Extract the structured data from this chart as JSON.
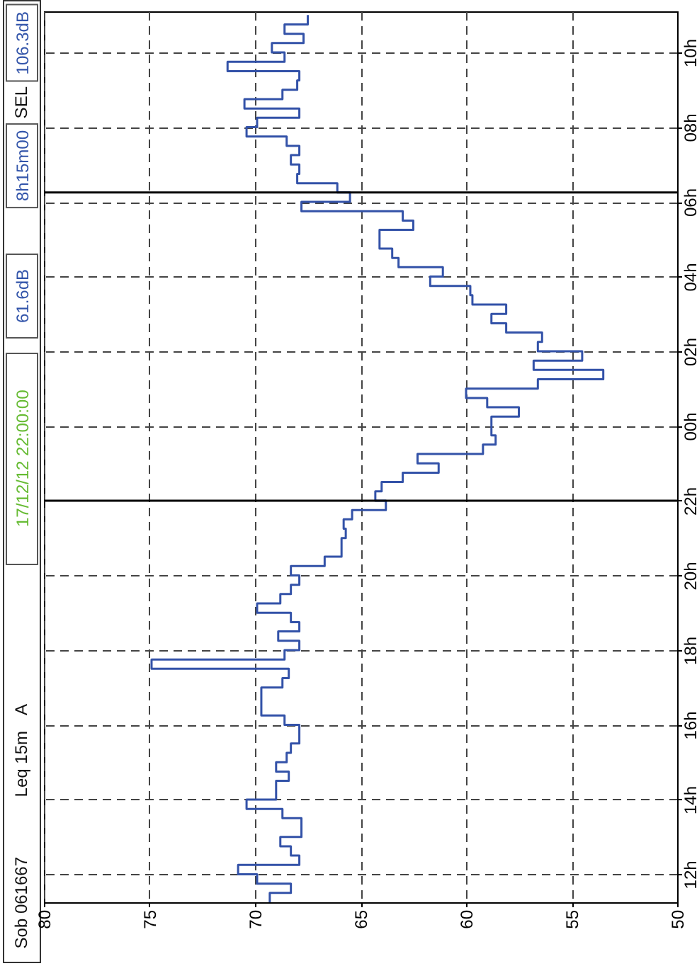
{
  "chart_data": {
    "type": "step",
    "orientation": "horizontal",
    "annotations": [
      "Sob 061667",
      "Leq 15m",
      "A",
      "17/12/12 22:00:00",
      "61.6dB",
      "8h15m00",
      "SEL",
      "106.3dB"
    ],
    "x": [
      "--12-17T11:15",
      "--12-17T11:30",
      "--12-17T11:45",
      "--12-17T12:00",
      "--12-17T12:15",
      "--12-17T12:30",
      "--12-17T12:45",
      "--12-17T13:00",
      "--12-17T13:15",
      "--12-17T13:30",
      "--12-17T13:45",
      "--12-17T14:00",
      "--12-17T14:15",
      "--12-17T14:30",
      "--12-17T14:45",
      "--12-17T15:00",
      "--12-17T15:15",
      "--12-17T15:30",
      "--12-17T15:45",
      "--12-17T16:00",
      "--12-17T16:15",
      "--12-17T16:30",
      "--12-17T16:45",
      "--12-17T17:00",
      "--12-17T17:15",
      "--12-17T17:30",
      "--12-17T17:45",
      "--12-17T18:00",
      "--12-17T18:15",
      "--12-17T18:30",
      "--12-17T18:45",
      "--12-17T19:00",
      "--12-17T19:15",
      "--12-17T19:30",
      "--12-17T19:45",
      "--12-17T20:00",
      "--12-17T20:15",
      "--12-17T20:30",
      "--12-17T20:45",
      "--12-17T21:00",
      "--12-17T21:15",
      "--12-17T21:30",
      "--12-17T21:45",
      "--12-17T22:00",
      "--12-17T22:15",
      "--12-17T22:30",
      "--12-17T22:45",
      "--12-17T23:00",
      "--12-17T23:15",
      "--12-17T23:30",
      "--12-17T23:45",
      "--12-18T00:00",
      "--12-18T00:15",
      "--12-18T00:30",
      "--12-18T00:45",
      "--12-18T01:00",
      "--12-18T01:15",
      "--12-18T01:30",
      "--12-18T01:45",
      "--12-18T02:00",
      "--12-18T02:15",
      "--12-18T02:30",
      "--12-18T02:45",
      "--12-18T03:00",
      "--12-18T03:15",
      "--12-18T03:30",
      "--12-18T03:45",
      "--12-18T04:00",
      "--12-18T04:15",
      "--12-18T04:30",
      "--12-18T04:45",
      "--12-18T05:00",
      "--12-18T05:15",
      "--12-18T05:30",
      "--12-18T05:45",
      "--12-18T06:00",
      "--12-18T06:15",
      "--12-18T06:30",
      "--12-18T06:45",
      "--12-18T07:00",
      "--12-18T07:15",
      "--12-18T07:30",
      "--12-18T07:45",
      "--12-18T08:00",
      "--12-18T08:15",
      "--12-18T08:30",
      "--12-18T08:45",
      "--12-18T09:00",
      "--12-18T09:15",
      "--12-18T09:30",
      "--12-18T09:45",
      "--12-18T10:00",
      "--12-18T10:15",
      "--12-18T10:30",
      "--12-18T10:45",
      "--12-18T11:00"
    ],
    "series": [
      {
        "color": "#3352a8",
        "values": [
          69.3,
          68.3,
          69.9,
          70.8,
          67.9,
          68.3,
          68.8,
          67.8,
          67.8,
          68.7,
          70.4,
          69.0,
          69.0,
          68.4,
          69.0,
          68.5,
          68.3,
          67.9,
          67.9,
          68.6,
          69.7,
          69.7,
          69.7,
          68.7,
          68.4,
          74.9,
          68.6,
          67.9,
          68.9,
          67.9,
          68.3,
          69.9,
          68.8,
          68.3,
          67.9,
          68.3,
          66.7,
          65.9,
          65.9,
          65.7,
          65.8,
          65.4,
          63.8,
          64.3,
          64.0,
          63.0,
          61.3,
          62.3,
          59.2,
          58.6,
          58.8,
          58.8,
          57.5,
          59.0,
          60.0,
          56.6,
          53.5,
          56.8,
          54.5,
          56.6,
          56.4,
          58.1,
          58.8,
          58.1,
          59.7,
          59.8,
          61.7,
          61.1,
          63.2,
          63.5,
          64.1,
          64.1,
          62.5,
          63.0,
          67.8,
          65.5,
          66.1,
          68.0,
          67.9,
          68.3,
          67.9,
          68.5,
          70.4,
          69.9,
          67.9,
          70.5,
          68.7,
          68.0,
          67.9,
          71.3,
          68.6,
          69.2,
          67.7,
          68.6,
          67.5,
          67.5
        ]
      }
    ],
    "ylim": [
      "--12-17T11:15",
      "--12-18T11:06"
    ],
    "yticks": [
      {
        "value": "--12-17T12:00",
        "label": "12h"
      },
      {
        "value": "--12-17T14:00",
        "label": "14h"
      },
      {
        "value": "--12-17T16:00",
        "label": "16h"
      },
      {
        "value": "--12-17T18:00",
        "label": "18h"
      },
      {
        "value": "--12-17T20:00",
        "label": "20h"
      },
      {
        "value": "--12-17T22:00",
        "label": "22h"
      },
      {
        "value": "--12-18T00:00",
        "label": "00h"
      },
      {
        "value": "--12-18T02:00",
        "label": "02h"
      },
      {
        "value": "--12-18T04:00",
        "label": "04h"
      },
      {
        "value": "--12-18T06:00",
        "label": "06h"
      },
      {
        "value": "--12-18T08:00",
        "label": "08h"
      },
      {
        "value": "--12-18T10:00",
        "label": "10h"
      }
    ],
    "xlim": [
      80,
      50
    ],
    "xticks": [
      80,
      75,
      70,
      65,
      60,
      55,
      50
    ],
    "grid": true,
    "line_style": "solid",
    "ref_lines": [
      {
        "axis": "y",
        "value": "--12-17T22:00",
        "color": "#000000"
      },
      {
        "axis": "y",
        "value": "--12-18T06:15",
        "color": "#000000"
      }
    ]
  }
}
